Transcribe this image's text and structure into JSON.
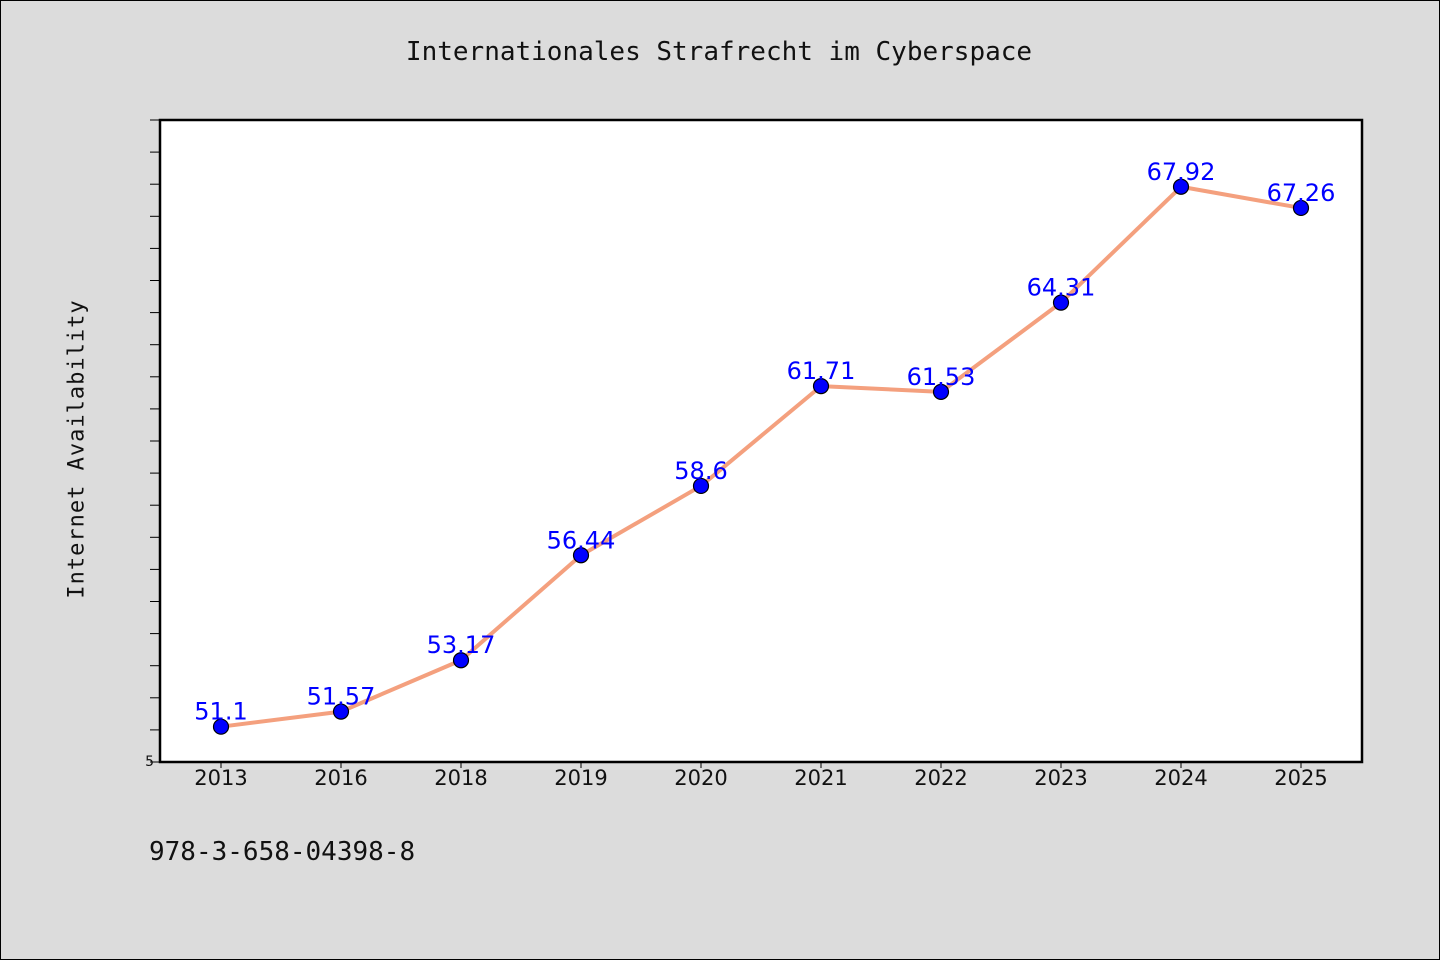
{
  "colors": {
    "background": "#dcdcdc",
    "plot_background": "#ffffff",
    "line": "#f4a07e",
    "marker": "#0000ff",
    "data_label": "#0000ff"
  },
  "footnote": "978-3-658-04398-8",
  "chart_data": {
    "type": "line",
    "title": "Internationales Strafrecht im Cyberspace",
    "xlabel": "",
    "ylabel": "Internet Availability",
    "categories": [
      "2013",
      "2016",
      "2018",
      "2019",
      "2020",
      "2021",
      "2022",
      "2023",
      "2024",
      "2025"
    ],
    "series": [
      {
        "values": [
          51.1,
          51.57,
          53.17,
          56.44,
          58.6,
          61.71,
          61.53,
          64.31,
          67.92,
          67.26
        ],
        "labels": [
          "51.1",
          "51.57",
          "53.17",
          "56.44",
          "58.6",
          "61.71",
          "61.53",
          "64.31",
          "67.92",
          "67.26"
        ]
      }
    ],
    "ylim": [
      50,
      70
    ],
    "y_tick_labels": [
      "5"
    ],
    "grid": false,
    "legend": "none"
  }
}
